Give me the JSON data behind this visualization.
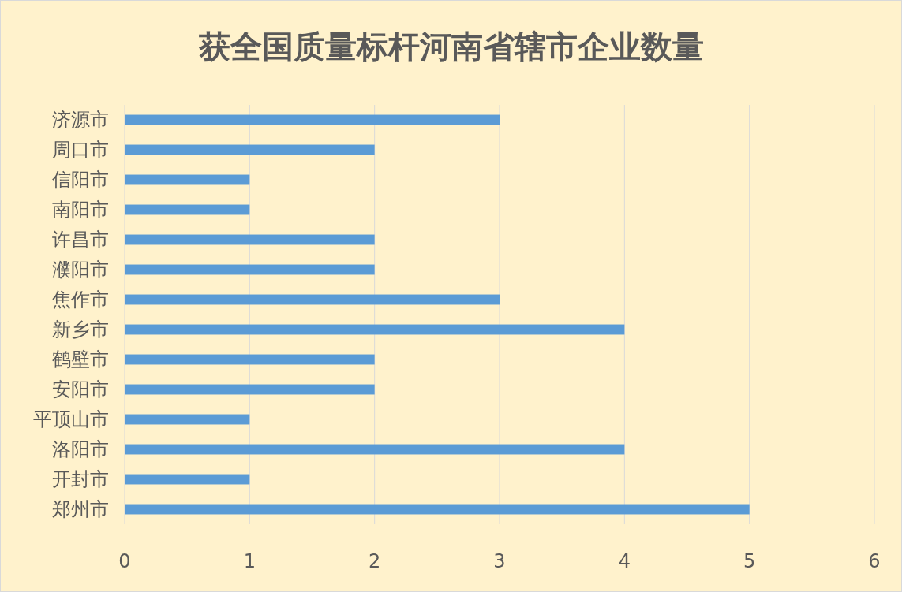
{
  "chart_data": {
    "type": "bar",
    "orientation": "horizontal",
    "title": "获全国质量标杆河南省辖市企业数量",
    "categories": [
      "济源市",
      "周口市",
      "信阳市",
      "南阳市",
      "许昌市",
      "濮阳市",
      "焦作市",
      "新乡市",
      "鹤壁市",
      "安阳市",
      "平顶山市",
      "洛阳市",
      "开封市",
      "郑州市"
    ],
    "values": [
      3,
      2,
      1,
      1,
      2,
      2,
      3,
      4,
      2,
      2,
      1,
      4,
      1,
      5
    ],
    "color": "#5b9bd5",
    "xlim": [
      0,
      6
    ],
    "xticks": [
      0,
      1,
      2,
      3,
      4,
      5,
      6
    ],
    "grid": "x"
  }
}
